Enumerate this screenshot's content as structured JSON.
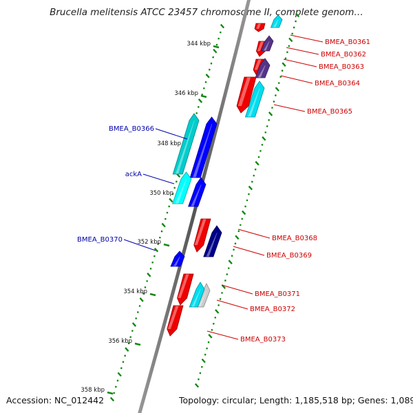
{
  "title": "Brucella melitensis ATCC 23457 chromosome II, complete genom…",
  "footer": {
    "accession": "Accession: NC_012442",
    "topology": "Topology: circular; Length: 1,185,518 bp; Genes: 1,089"
  },
  "ticks": [
    "344 kbp",
    "346 kbp",
    "348 kbp",
    "350 kbp",
    "352 kbp",
    "354 kbp",
    "356 kbp",
    "358 kbp"
  ],
  "genes": [
    {
      "label": "BMEA_B0361",
      "strand": "forward",
      "color": "#ee0000",
      "label_color": "#cc0000"
    },
    {
      "label": "BMEA_B0362",
      "strand": "forward",
      "color": "#553388",
      "label_color": "#cc0000"
    },
    {
      "label": "BMEA_B0363",
      "strand": "forward",
      "color": "#553388",
      "label_color": "#cc0000"
    },
    {
      "label": "BMEA_B0364",
      "strand": "forward",
      "color": "#ee0000",
      "label_color": "#cc0000"
    },
    {
      "label": "BMEA_B0365",
      "strand": "forward",
      "color": "#00ddee",
      "label_color": "#cc0000"
    },
    {
      "label": "BMEA_B0366",
      "strand": "reverse",
      "color": "#00cccc",
      "label_color": "#0000aa"
    },
    {
      "label": "ackA",
      "strand": "reverse",
      "color": "#00ffff",
      "label_color": "#0000aa"
    },
    {
      "label": "BMEA_B0370",
      "strand": "reverse",
      "color": "#0000ff",
      "label_color": "#0000aa"
    },
    {
      "label": "BMEA_B0368",
      "strand": "forward",
      "color": "#ee0000",
      "label_color": "#cc0000"
    },
    {
      "label": "BMEA_B0369",
      "strand": "forward",
      "color": "#000088",
      "label_color": "#cc0000"
    },
    {
      "label": "BMEA_B0371",
      "strand": "forward",
      "color": "#ee0000",
      "label_color": "#cc0000"
    },
    {
      "label": "BMEA_B0372",
      "strand": "forward",
      "color": "#00ddee",
      "label_color": "#cc0000"
    },
    {
      "label": "BMEA_B0373",
      "strand": "forward",
      "color": "#ee0000",
      "label_color": "#cc0000"
    }
  ],
  "colors": {
    "backbone": "#777777",
    "gc_ticks": "#118811",
    "cds_forward": "#ee0000",
    "cds_reverse": "#0000ff",
    "forward_label": "#cc0000",
    "reverse_label": "#0000aa"
  }
}
